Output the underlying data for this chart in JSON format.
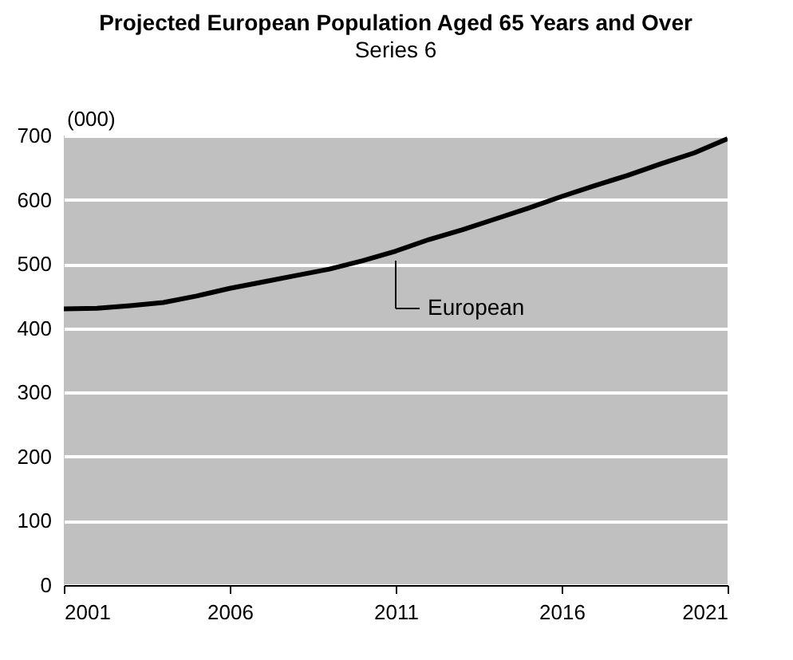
{
  "chart_data": {
    "type": "line",
    "title": "Projected European Population Aged 65 Years and Over",
    "subtitle": "Series 6",
    "ylabel": "(000)",
    "x": [
      2001,
      2002,
      2003,
      2004,
      2005,
      2006,
      2007,
      2008,
      2009,
      2010,
      2011,
      2012,
      2013,
      2014,
      2015,
      2016,
      2017,
      2018,
      2019,
      2020,
      2021
    ],
    "series": [
      {
        "name": "European",
        "color": "#000000",
        "values": [
          430,
          431,
          435,
          440,
          450,
          462,
          472,
          482,
          492,
          505,
          520,
          538,
          553,
          570,
          587,
          605,
          622,
          638,
          656,
          673,
          695
        ]
      }
    ],
    "xlim": [
      2001,
      2021
    ],
    "xticks": [
      2001,
      2006,
      2011,
      2016,
      2021
    ],
    "ylim": [
      0,
      700
    ],
    "yticks": [
      0,
      100,
      200,
      300,
      400,
      500,
      600,
      700
    ],
    "grid": "y"
  }
}
